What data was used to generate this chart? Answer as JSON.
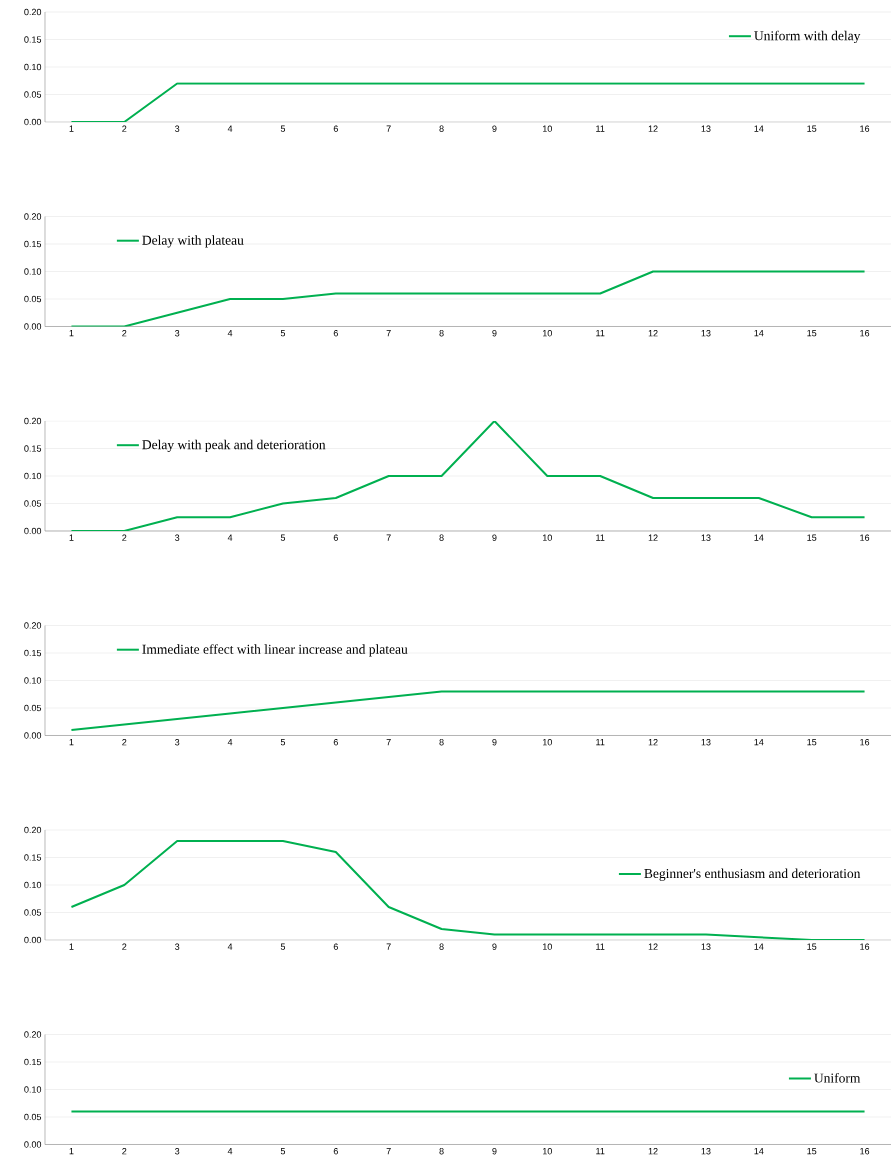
{
  "chart_data": [
    {
      "type": "line",
      "categories": [
        "1",
        "2",
        "3",
        "4",
        "5",
        "6",
        "7",
        "8",
        "9",
        "10",
        "11",
        "12",
        "13",
        "14",
        "15",
        "16"
      ],
      "ylim": [
        0,
        0.2
      ],
      "yticks": [
        {
          "value": 0,
          "label": "0.00"
        },
        {
          "value": 0.05,
          "label": "0.05"
        },
        {
          "value": 0.1,
          "label": "0.10"
        },
        {
          "value": 0.15,
          "label": "0.15"
        },
        {
          "value": 0.2,
          "label": "0.20"
        }
      ],
      "grid": "y",
      "legend": "top right",
      "series": [
        {
          "name": "Uniform with delay",
          "color": "#00b050",
          "values": [
            0,
            0,
            0.07,
            0.07,
            0.07,
            0.07,
            0.07,
            0.07,
            0.07,
            0.07,
            0.07,
            0.07,
            0.07,
            0.07,
            0.07,
            0.07
          ]
        }
      ]
    },
    {
      "type": "line",
      "categories": [
        "1",
        "2",
        "3",
        "4",
        "5",
        "6",
        "7",
        "8",
        "9",
        "10",
        "11",
        "12",
        "13",
        "14",
        "15",
        "16"
      ],
      "ylim": [
        0,
        0.2
      ],
      "yticks": [
        {
          "value": 0,
          "label": "0.00"
        },
        {
          "value": 0.05,
          "label": "0.05"
        },
        {
          "value": 0.1,
          "label": "0.10"
        },
        {
          "value": 0.15,
          "label": "0.15"
        },
        {
          "value": 0.2,
          "label": "0.20"
        }
      ],
      "grid": "y",
      "legend": "top left",
      "series": [
        {
          "name": "Delay with plateau",
          "color": "#00b050",
          "values": [
            0,
            0,
            0.025,
            0.05,
            0.05,
            0.06,
            0.06,
            0.06,
            0.06,
            0.06,
            0.06,
            0.1,
            0.1,
            0.1,
            0.1,
            0.1
          ]
        }
      ]
    },
    {
      "type": "line",
      "categories": [
        "1",
        "2",
        "3",
        "4",
        "5",
        "6",
        "7",
        "8",
        "9",
        "10",
        "11",
        "12",
        "13",
        "14",
        "15",
        "16"
      ],
      "ylim": [
        0,
        0.2
      ],
      "yticks": [
        {
          "value": 0,
          "label": "0.00"
        },
        {
          "value": 0.05,
          "label": "0.05"
        },
        {
          "value": 0.1,
          "label": "0.10"
        },
        {
          "value": 0.15,
          "label": "0.15"
        },
        {
          "value": 0.2,
          "label": "0.20"
        }
      ],
      "grid": "y",
      "legend": "top left",
      "series": [
        {
          "name": "Delay with peak and deterioration",
          "color": "#00b050",
          "values": [
            0,
            0,
            0.025,
            0.025,
            0.05,
            0.06,
            0.1,
            0.1,
            0.2,
            0.1,
            0.1,
            0.06,
            0.06,
            0.06,
            0.025,
            0.025
          ]
        }
      ]
    },
    {
      "type": "line",
      "categories": [
        "1",
        "2",
        "3",
        "4",
        "5",
        "6",
        "7",
        "8",
        "9",
        "10",
        "11",
        "12",
        "13",
        "14",
        "15",
        "16"
      ],
      "ylim": [
        0,
        0.2
      ],
      "yticks": [
        {
          "value": 0,
          "label": "0.00"
        },
        {
          "value": 0.05,
          "label": "0.05"
        },
        {
          "value": 0.1,
          "label": "0.10"
        },
        {
          "value": 0.15,
          "label": "0.15"
        },
        {
          "value": 0.2,
          "label": "0.20"
        }
      ],
      "grid": "y",
      "legend": "top left",
      "series": [
        {
          "name": "Immediate effect with linear increase and plateau",
          "color": "#00b050",
          "values": [
            0.01,
            0.02,
            0.03,
            0.04,
            0.05,
            0.06,
            0.07,
            0.08,
            0.08,
            0.08,
            0.08,
            0.08,
            0.08,
            0.08,
            0.08,
            0.08
          ]
        }
      ]
    },
    {
      "type": "line",
      "categories": [
        "1",
        "2",
        "3",
        "4",
        "5",
        "6",
        "7",
        "8",
        "9",
        "10",
        "11",
        "12",
        "13",
        "14",
        "15",
        "16"
      ],
      "ylim": [
        0,
        0.2
      ],
      "yticks": [
        {
          "value": 0,
          "label": "0.00"
        },
        {
          "value": 0.05,
          "label": "0.05"
        },
        {
          "value": 0.1,
          "label": "0.10"
        },
        {
          "value": 0.15,
          "label": "0.15"
        },
        {
          "value": 0.2,
          "label": "0.20"
        }
      ],
      "grid": "y",
      "legend": "right",
      "series": [
        {
          "name": "Beginner's enthusiasm and deterioration",
          "color": "#00b050",
          "values": [
            0.06,
            0.1,
            0.18,
            0.18,
            0.18,
            0.16,
            0.06,
            0.02,
            0.01,
            0.01,
            0.01,
            0.01,
            0.01,
            0.005,
            0,
            0
          ]
        }
      ]
    },
    {
      "type": "line",
      "categories": [
        "1",
        "2",
        "3",
        "4",
        "5",
        "6",
        "7",
        "8",
        "9",
        "10",
        "11",
        "12",
        "13",
        "14",
        "15",
        "16"
      ],
      "ylim": [
        0,
        0.2
      ],
      "yticks": [
        {
          "value": 0,
          "label": "0.00"
        },
        {
          "value": 0.05,
          "label": "0.05"
        },
        {
          "value": 0.1,
          "label": "0.10"
        },
        {
          "value": 0.15,
          "label": "0.15"
        },
        {
          "value": 0.2,
          "label": "0.20"
        }
      ],
      "grid": "y",
      "legend": "right",
      "series": [
        {
          "name": "Uniform",
          "color": "#00b050",
          "values": [
            0.06,
            0.06,
            0.06,
            0.06,
            0.06,
            0.06,
            0.06,
            0.06,
            0.06,
            0.06,
            0.06,
            0.06,
            0.06,
            0.06,
            0.06,
            0.06
          ]
        }
      ]
    }
  ]
}
